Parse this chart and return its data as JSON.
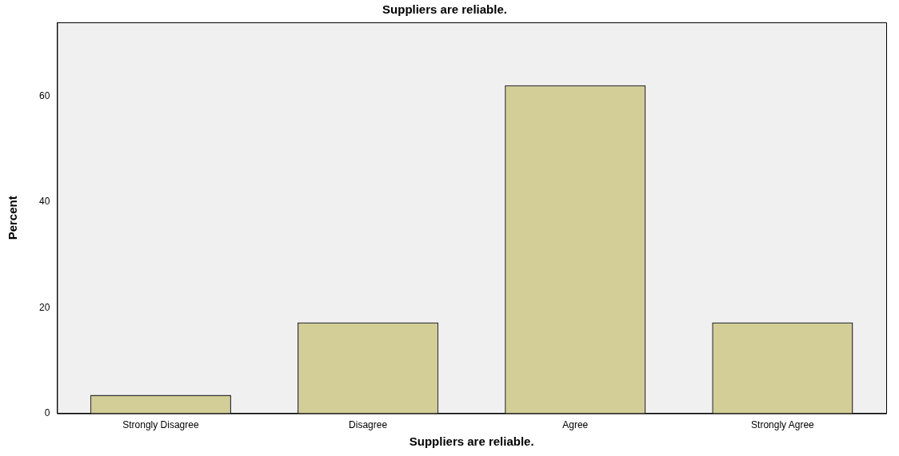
{
  "chart_data": {
    "type": "bar",
    "title": "Suppliers are reliable.",
    "xlabel": "Suppliers are reliable.",
    "ylabel": "Percent",
    "categories": [
      "Strongly Disagree",
      "Disagree",
      "Agree",
      "Strongly Agree"
    ],
    "values": [
      3.5,
      17.2,
      62.1,
      17.2
    ],
    "color": "#d3ce97",
    "ylim": [
      0,
      74
    ],
    "yticks": [
      0,
      20,
      40,
      60
    ],
    "grid": false,
    "legend": false
  }
}
